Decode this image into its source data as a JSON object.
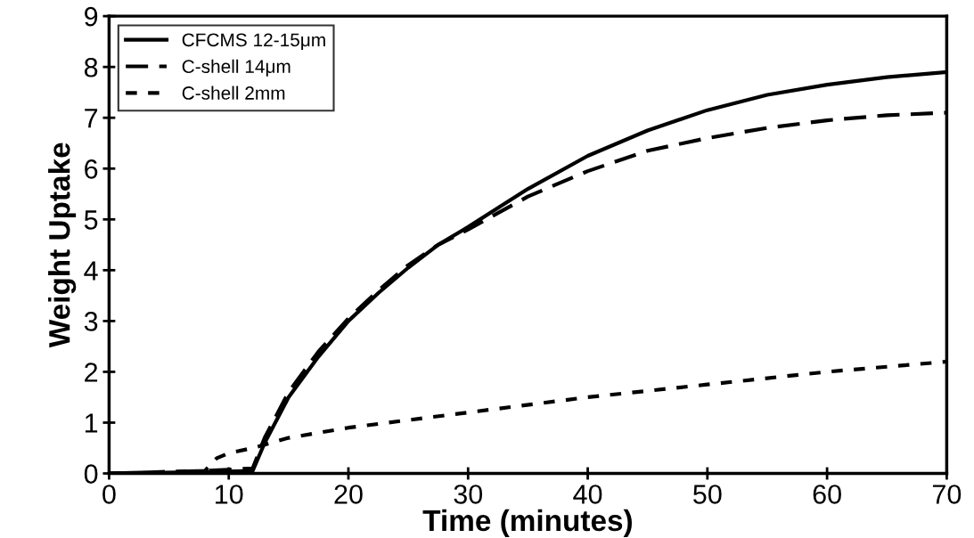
{
  "chart_data": {
    "type": "line",
    "xlabel": "Time (minutes)",
    "ylabel": "Weight Uptake",
    "xlim": [
      0,
      70
    ],
    "xticks": [
      0,
      10,
      20,
      30,
      40,
      50,
      60,
      70
    ],
    "ylim": [
      0,
      9
    ],
    "yticks": [
      0,
      1,
      2,
      3,
      4,
      5,
      6,
      7,
      8,
      9
    ],
    "grid": false,
    "legend": "top left",
    "marker": "none",
    "series": [
      {
        "name": "CFCMS 12-15μm",
        "color": "#000000",
        "line_style": "solid",
        "x": [
          0,
          8,
          12,
          13,
          15,
          17.5,
          20,
          22.5,
          25,
          27.5,
          30,
          35,
          40,
          45,
          50,
          55,
          60,
          65,
          70
        ],
        "values": [
          0,
          0.03,
          0.05,
          0.6,
          1.5,
          2.3,
          3.0,
          3.55,
          4.05,
          4.5,
          4.85,
          5.6,
          6.25,
          6.75,
          7.15,
          7.45,
          7.65,
          7.8,
          7.9
        ]
      },
      {
        "name": "C-shell 14μm",
        "color": "#000000",
        "line_style": "dashed",
        "x": [
          0,
          8,
          12,
          13,
          15,
          17.5,
          20,
          22.5,
          25,
          27.5,
          30,
          35,
          40,
          45,
          50,
          55,
          60,
          65,
          70
        ],
        "values": [
          0,
          0.05,
          0.1,
          0.7,
          1.6,
          2.4,
          3.05,
          3.6,
          4.1,
          4.5,
          4.8,
          5.45,
          5.95,
          6.35,
          6.6,
          6.8,
          6.95,
          7.05,
          7.1
        ]
      },
      {
        "name": "C-shell 2mm",
        "color": "#000000",
        "line_style": "dotted",
        "x": [
          0,
          8,
          9,
          10,
          12,
          15,
          20,
          30,
          40,
          50,
          60,
          70
        ],
        "values": [
          0,
          0.05,
          0.3,
          0.4,
          0.5,
          0.7,
          0.9,
          1.2,
          1.5,
          1.75,
          2.0,
          2.2
        ]
      }
    ]
  }
}
